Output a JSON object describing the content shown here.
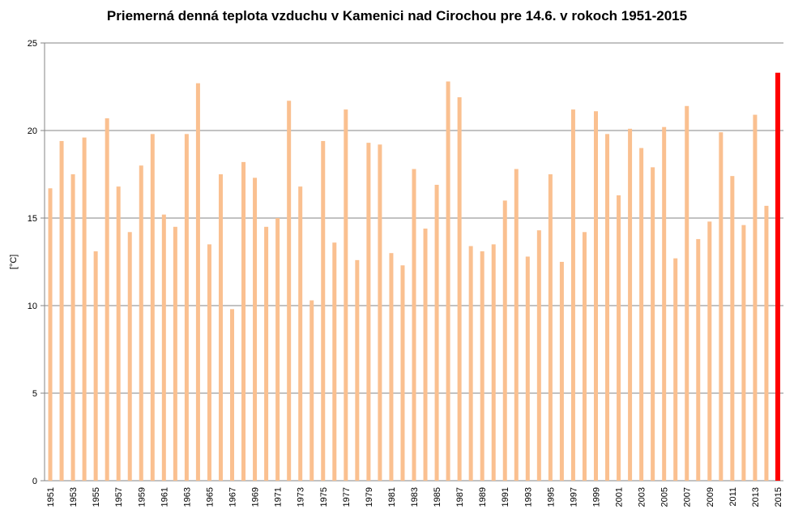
{
  "chart_data": {
    "type": "bar",
    "title": "Priemerná denná teplota vzduchu v Kamenici nad Cirochou pre 14.6. v rokoch 1951-2015",
    "ylabel": "[°C]",
    "xlabel": "",
    "ylim": [
      0,
      25
    ],
    "yticks": [
      0,
      5,
      10,
      15,
      20,
      25
    ],
    "grid": "horizontal",
    "categories": [
      "1951",
      "1952",
      "1953",
      "1954",
      "1955",
      "1956",
      "1957",
      "1958",
      "1959",
      "1960",
      "1961",
      "1962",
      "1963",
      "1964",
      "1965",
      "1966",
      "1967",
      "1968",
      "1969",
      "1970",
      "1971",
      "1972",
      "1973",
      "1974",
      "1975",
      "1976",
      "1977",
      "1978",
      "1979",
      "1980",
      "1981",
      "1982",
      "1983",
      "1984",
      "1985",
      "1986",
      "1987",
      "1988",
      "1989",
      "1990",
      "1991",
      "1992",
      "1993",
      "1994",
      "1995",
      "1996",
      "1997",
      "1998",
      "1999",
      "2000",
      "2001",
      "2002",
      "2003",
      "2004",
      "2005",
      "2006",
      "2007",
      "2008",
      "2009",
      "2010",
      "2011",
      "2012",
      "2013",
      "2014",
      "2015"
    ],
    "tick_labels": [
      "1951",
      "1953",
      "1955",
      "1957",
      "1959",
      "1961",
      "1963",
      "1965",
      "1967",
      "1969",
      "1971",
      "1973",
      "1975",
      "1977",
      "1979",
      "1981",
      "1983",
      "1985",
      "1987",
      "1989",
      "1991",
      "1993",
      "1995",
      "1997",
      "1999",
      "2001",
      "2003",
      "2005",
      "2007",
      "2009",
      "2011",
      "2013",
      "2015"
    ],
    "values": [
      16.7,
      19.4,
      17.5,
      19.6,
      13.1,
      20.7,
      16.8,
      14.2,
      18.0,
      19.8,
      15.2,
      14.5,
      19.8,
      22.7,
      13.5,
      17.5,
      9.8,
      18.2,
      17.3,
      14.5,
      15.0,
      21.7,
      16.8,
      10.3,
      19.4,
      13.6,
      21.2,
      12.6,
      19.3,
      19.2,
      13.0,
      12.3,
      17.8,
      14.4,
      16.9,
      22.8,
      21.9,
      13.4,
      13.1,
      13.5,
      16.0,
      17.8,
      12.8,
      14.3,
      17.5,
      12.5,
      21.2,
      14.2,
      21.1,
      19.8,
      16.3,
      20.1,
      19.0,
      17.9,
      20.2,
      12.7,
      21.4,
      13.8,
      14.8,
      19.9,
      17.4,
      14.6,
      20.9,
      15.7,
      23.3
    ],
    "colors": {
      "bar": "#fac090",
      "highlight_bar": "#ff0000",
      "grid": "#868686",
      "axis": "#868686"
    },
    "highlight_category": "2015"
  }
}
